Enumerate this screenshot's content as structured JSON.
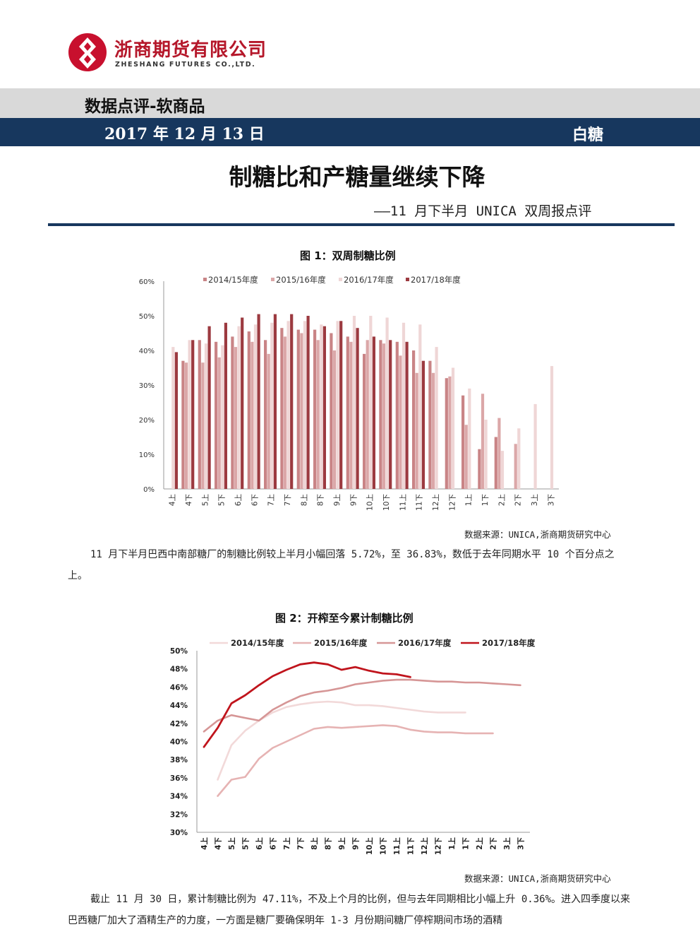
{
  "header": {
    "company_cn": "浙商期货有限公司",
    "company_en": "ZHESHANG FUTURES CO.,LTD.",
    "category": "数据点评-软商品",
    "date": "2017 年 12 月 13 日",
    "commodity": "白糖"
  },
  "title": {
    "main": "制糖比和产糖量继续下降",
    "sub": "——11 月下半月 UNICA 双周报点评"
  },
  "figure1": {
    "title": "图 1：双周制糖比例",
    "source": "数据来源：UNICA,浙商期货研究中心"
  },
  "paragraph1": "11 月下半月巴西中南部糖厂的制糖比例较上半月小幅回落 5.72%，至 36.83%，数低于去年同期水平 10 个百分点之上。",
  "figure2": {
    "title": "图 2：开榨至今累计制糖比例",
    "source": "数据来源：UNICA,浙商期货研究中心"
  },
  "paragraph2": "截止 11 月 30 日，累计制糖比例为 47.11%，不及上个月的比例，但与去年同期相比小幅上升 0.36%。进入四季度以来巴西糖厂加大了酒精生产的力度，一方面是糖厂要确保明年 1-3 月份期间糖厂停榨期间市场的酒精",
  "chart_data": [
    {
      "type": "bar",
      "categories": [
        "4上",
        "4下",
        "5上",
        "5下",
        "6上",
        "6下",
        "7上",
        "7下",
        "8上",
        "8下",
        "9上",
        "9下",
        "10上",
        "10下",
        "11上",
        "11下",
        "12上",
        "12下",
        "1上",
        "1下",
        "2上",
        "2下",
        "3上",
        "3下"
      ],
      "ylim": [
        0,
        60
      ],
      "yticks": [
        "0%",
        "10%",
        "20%",
        "30%",
        "40%",
        "50%",
        "60%"
      ],
      "legend_position": "top",
      "series": [
        {
          "name": "2014/15年度",
          "color": "#c98486",
          "values": [
            null,
            37,
            43,
            42.5,
            44,
            45.5,
            43,
            46.5,
            46,
            46,
            45,
            44,
            39,
            43,
            42.5,
            40,
            37,
            32,
            27,
            11.5,
            15,
            null,
            null,
            null
          ]
        },
        {
          "name": "2015/16年度",
          "color": "#dba7a8",
          "values": [
            null,
            36.5,
            36.5,
            38,
            41,
            42.5,
            39,
            44,
            45,
            43,
            40,
            42.5,
            43,
            42,
            38.5,
            33.5,
            33.5,
            32.5,
            18.5,
            27.5,
            20.5,
            13,
            null,
            null
          ]
        },
        {
          "name": "2016/17年度",
          "color": "#efd6d6",
          "values": [
            41,
            43,
            42,
            41.5,
            47,
            47.5,
            48,
            48.5,
            48.5,
            47.5,
            48.5,
            50,
            50,
            49.5,
            48,
            47.5,
            41,
            35,
            29,
            20,
            11,
            17.5,
            24.5,
            35.5
          ]
        },
        {
          "name": "2017/18年度",
          "color": "#9c3a40",
          "values": [
            39.5,
            43,
            47,
            48,
            49.5,
            50.5,
            50.5,
            50.5,
            50,
            47,
            48.5,
            46.5,
            44,
            43,
            42.5,
            37,
            null,
            null,
            null,
            null,
            null,
            null,
            null,
            null
          ]
        }
      ]
    },
    {
      "type": "line",
      "categories": [
        "4上",
        "4下",
        "5上",
        "5下",
        "6上",
        "6下",
        "7上",
        "7下",
        "8上",
        "8下",
        "9上",
        "9下",
        "10上",
        "10下",
        "11上",
        "11下",
        "12上",
        "12下",
        "1上",
        "1下",
        "2上",
        "2下",
        "3上",
        "3下"
      ],
      "ylim": [
        30,
        50
      ],
      "yticks": [
        "30%",
        "32%",
        "34%",
        "36%",
        "38%",
        "40%",
        "42%",
        "44%",
        "46%",
        "48%",
        "50%"
      ],
      "legend_position": "top",
      "series": [
        {
          "name": "2014/15年度",
          "color": "#f2d9d9",
          "values": [
            null,
            35.8,
            39.6,
            41.2,
            42.3,
            43.2,
            43.8,
            44.1,
            44.3,
            44.4,
            44.3,
            44,
            44,
            43.9,
            43.7,
            43.5,
            43.3,
            43.2,
            43.2,
            43.2,
            null,
            null,
            null,
            null
          ]
        },
        {
          "name": "2015/16年度",
          "color": "#e6b3b3",
          "values": [
            null,
            34,
            35.8,
            36.1,
            38.1,
            39.3,
            40,
            40.7,
            41.4,
            41.6,
            41.5,
            41.6,
            41.7,
            41.8,
            41.7,
            41.3,
            41.1,
            41,
            41,
            40.9,
            40.9,
            40.9,
            null,
            null
          ]
        },
        {
          "name": "2016/17年度",
          "color": "#d69696",
          "values": [
            41.1,
            42.3,
            42.9,
            42.6,
            42.3,
            43.5,
            44.3,
            45,
            45.4,
            45.6,
            45.9,
            46.3,
            46.5,
            46.7,
            46.8,
            46.8,
            46.7,
            46.6,
            46.6,
            46.5,
            46.5,
            46.4,
            46.3,
            46.2
          ]
        },
        {
          "name": "2017/18年度",
          "color": "#c0141c",
          "values": [
            39.4,
            41.5,
            44.2,
            45.1,
            46.2,
            47.2,
            47.9,
            48.5,
            48.7,
            48.5,
            47.9,
            48.2,
            47.8,
            47.5,
            47.4,
            47.1,
            null,
            null,
            null,
            null,
            null,
            null,
            null,
            null
          ]
        }
      ]
    }
  ]
}
